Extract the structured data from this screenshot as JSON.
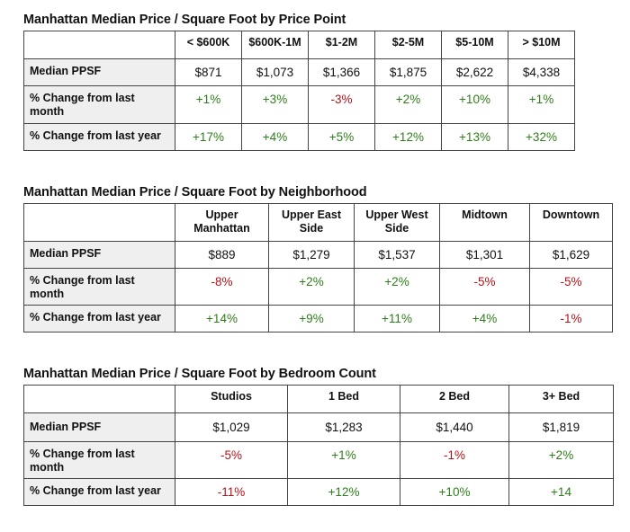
{
  "tables": [
    {
      "title": "Manhattan Median Price / Square Foot by Price Point",
      "columns": [
        "< $600K",
        "$600K-1M",
        "$1-2M",
        "$2-5M",
        "$5-10M",
        "> $10M"
      ],
      "rows": [
        {
          "label": "Median PPSF",
          "values": [
            "$871",
            "$1,073",
            "$1,366",
            "$1,875",
            "$2,622",
            "$4,338"
          ]
        },
        {
          "label": "% Change from last month",
          "values": [
            "+1%",
            "+3%",
            "-3%",
            "+2%",
            "+10%",
            "+1%"
          ]
        },
        {
          "label": "% Change from last year",
          "values": [
            "+17%",
            "+4%",
            "+5%",
            "+12%",
            "+13%",
            "+32%"
          ]
        }
      ]
    },
    {
      "title": "Manhattan Median Price / Square Foot by Neighborhood",
      "columns": [
        "Upper Manhattan",
        "Upper East Side",
        "Upper West Side",
        "Midtown",
        "Downtown"
      ],
      "rows": [
        {
          "label": "Median PPSF",
          "values": [
            "$889",
            "$1,279",
            "$1,537",
            "$1,301",
            "$1,629"
          ]
        },
        {
          "label": "% Change from last month",
          "values": [
            "-8%",
            "+2%",
            "+2%",
            "-5%",
            "-5%"
          ]
        },
        {
          "label": "% Change from last year",
          "values": [
            "+14%",
            "+9%",
            "+11%",
            "+4%",
            "-1%"
          ]
        }
      ]
    },
    {
      "title": "Manhattan Median Price / Square Foot by Bedroom Count",
      "columns": [
        "Studios",
        "1 Bed",
        "2 Bed",
        "3+ Bed"
      ],
      "rows": [
        {
          "label": "Median PPSF",
          "values": [
            "$1,029",
            "$1,283",
            "$1,440",
            "$1,819"
          ]
        },
        {
          "label": "% Change from last month",
          "values": [
            "-5%",
            "+1%",
            "-1%",
            "+2%"
          ]
        },
        {
          "label": "% Change from last year",
          "values": [
            "-11%",
            "+12%",
            "+10%",
            "+14"
          ]
        }
      ]
    }
  ],
  "colors": {
    "positive": "#2e7d1a",
    "negative": "#b3121b",
    "label_background": "#efefef"
  }
}
